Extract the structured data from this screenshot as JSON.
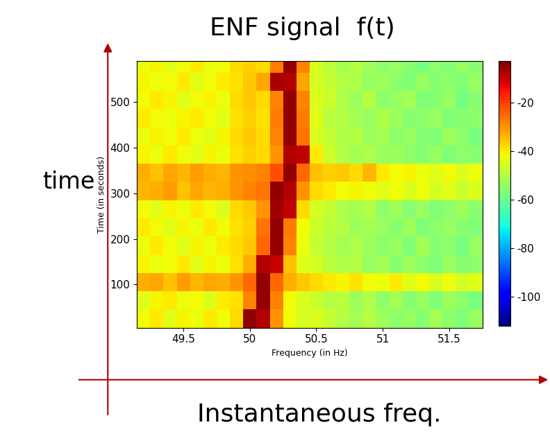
{
  "chart_data": {
    "type": "heatmap",
    "title": "ENF signal  f(t)",
    "x_label": "Frequency (in Hz)",
    "y_label": "Time (in seconds)",
    "annotations": [
      "time",
      "Instantaneous freq."
    ],
    "x_edges": [
      49.15,
      49.25,
      49.35,
      49.45,
      49.55,
      49.65,
      49.75,
      49.85,
      49.95,
      50.05,
      50.15,
      50.25,
      50.35,
      50.45,
      50.55,
      50.65,
      50.75,
      50.85,
      50.95,
      51.05,
      51.15,
      51.25,
      51.35,
      51.45,
      51.55,
      51.65,
      51.75
    ],
    "y_edges": [
      5,
      45,
      85,
      125,
      165,
      205,
      245,
      285,
      325,
      365,
      405,
      445,
      485,
      525,
      565,
      590
    ],
    "cells": [
      [
        -42,
        -40,
        -44,
        -41,
        -43,
        -40,
        -42,
        -38,
        -5,
        -8,
        -30,
        -42,
        -46,
        -45,
        -48,
        -50,
        -52,
        -50,
        -53,
        -55,
        -54,
        -56,
        -52,
        -55,
        -57,
        -54
      ],
      [
        -44,
        -41,
        -40,
        -43,
        -42,
        -45,
        -40,
        -39,
        -28,
        -5,
        -28,
        -42,
        -45,
        -47,
        -50,
        -49,
        -53,
        -51,
        -55,
        -52,
        -56,
        -54,
        -57,
        -53,
        -55,
        -58
      ],
      [
        -33,
        -32,
        -35,
        -31,
        -34,
        -32,
        -33,
        -30,
        -25,
        -5,
        -25,
        -33,
        -36,
        -38,
        -40,
        -41,
        -39,
        -42,
        -43,
        -40,
        -44,
        -42,
        -45,
        -43,
        -46,
        -44
      ],
      [
        -41,
        -43,
        -42,
        -40,
        -44,
        -41,
        -43,
        -39,
        -33,
        -8,
        -10,
        -35,
        -44,
        -46,
        -49,
        -51,
        -50,
        -54,
        -52,
        -56,
        -53,
        -55,
        -57,
        -54,
        -56,
        -55
      ],
      [
        -43,
        -40,
        -42,
        -44,
        -41,
        -43,
        -40,
        -38,
        -36,
        -25,
        -5,
        -28,
        -43,
        -48,
        -50,
        -52,
        -51,
        -53,
        -55,
        -54,
        -57,
        -52,
        -56,
        -55,
        -58,
        -54
      ],
      [
        -40,
        -42,
        -44,
        -41,
        -43,
        -40,
        -42,
        -39,
        -37,
        -26,
        -5,
        -27,
        -42,
        -47,
        -49,
        -50,
        -53,
        -52,
        -54,
        -56,
        -53,
        -57,
        -55,
        -54,
        -56,
        -57
      ],
      [
        -42,
        -44,
        -41,
        -43,
        -40,
        -42,
        -45,
        -38,
        -36,
        -30,
        -6,
        -9,
        -38,
        -46,
        -48,
        -51,
        -52,
        -50,
        -55,
        -53,
        -56,
        -54,
        -57,
        -55,
        -53,
        -56
      ],
      [
        -34,
        -33,
        -31,
        -35,
        -32,
        -34,
        -33,
        -30,
        -28,
        -26,
        -5,
        -8,
        -30,
        -38,
        -40,
        -42,
        -41,
        -43,
        -44,
        -42,
        -45,
        -43,
        -46,
        -44,
        -47,
        -45
      ],
      [
        -33,
        -35,
        -32,
        -34,
        -31,
        -33,
        -34,
        -30,
        -29,
        -28,
        -22,
        -5,
        -25,
        -35,
        -37,
        -36,
        -38,
        -34,
        -40,
        -42,
        -41,
        -43,
        -44,
        -42,
        -45,
        -43
      ],
      [
        -41,
        -43,
        -40,
        -42,
        -44,
        -41,
        -43,
        -39,
        -37,
        -38,
        -30,
        -8,
        -9,
        -40,
        -47,
        -50,
        -52,
        -51,
        -54,
        -53,
        -55,
        -56,
        -54,
        -57,
        -55,
        -56
      ],
      [
        -43,
        -41,
        -42,
        -40,
        -43,
        -44,
        -41,
        -38,
        -36,
        -38,
        -28,
        -5,
        -26,
        -45,
        -48,
        -51,
        -50,
        -53,
        -52,
        -55,
        -54,
        -56,
        -57,
        -53,
        -55,
        -58
      ],
      [
        -40,
        -42,
        -43,
        -41,
        -40,
        -42,
        -44,
        -39,
        -37,
        -39,
        -27,
        -5,
        -27,
        -44,
        -49,
        -50,
        -52,
        -54,
        -51,
        -53,
        -56,
        -55,
        -54,
        -57,
        -56,
        -55
      ],
      [
        -42,
        -40,
        -41,
        -44,
        -42,
        -41,
        -43,
        -38,
        -36,
        -38,
        -28,
        -5,
        -28,
        -45,
        -47,
        -51,
        -53,
        -50,
        -55,
        -54,
        -52,
        -57,
        -56,
        -54,
        -58,
        -56
      ],
      [
        -41,
        -43,
        -42,
        -40,
        -44,
        -42,
        -40,
        -39,
        -36,
        -32,
        -7,
        -8,
        -32,
        -46,
        -48,
        -50,
        -51,
        -54,
        -53,
        -55,
        -57,
        -54,
        -56,
        -55,
        -57,
        -54
      ],
      [
        -43,
        -41,
        -44,
        -42,
        -40,
        -43,
        -42,
        -38,
        -37,
        -38,
        -27,
        -5,
        -28,
        -45,
        -49,
        -52,
        -50,
        -53,
        -55,
        -54,
        -56,
        -58,
        -55,
        -57,
        -54,
        -56
      ]
    ],
    "xlim": [
      49.15,
      51.75
    ],
    "xticks": [
      49.5,
      50,
      50.5,
      51,
      51.5
    ],
    "ylim": [
      5,
      590
    ],
    "yticks": [
      100,
      200,
      300,
      400,
      500
    ],
    "colorbar_lim": [
      -112,
      -3
    ],
    "colorbar_ticks": [
      -20,
      -40,
      -60,
      -80,
      -100
    ],
    "grid": false
  }
}
